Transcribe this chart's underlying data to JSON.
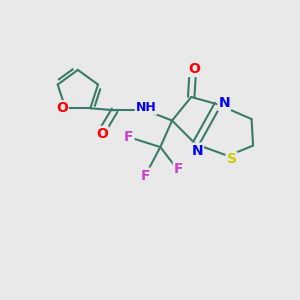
{
  "bg_color": "#e9e9e9",
  "bond_color": "#3a7a68",
  "bond_width": 1.5,
  "atom_colors": {
    "O": "#ff0000",
    "N": "#0000ff",
    "S": "#cccc00",
    "F": "#cc44cc",
    "C": "#3a7a68"
  },
  "font_size": 10,
  "fig_size": [
    3.0,
    3.0
  ],
  "dpi": 100
}
